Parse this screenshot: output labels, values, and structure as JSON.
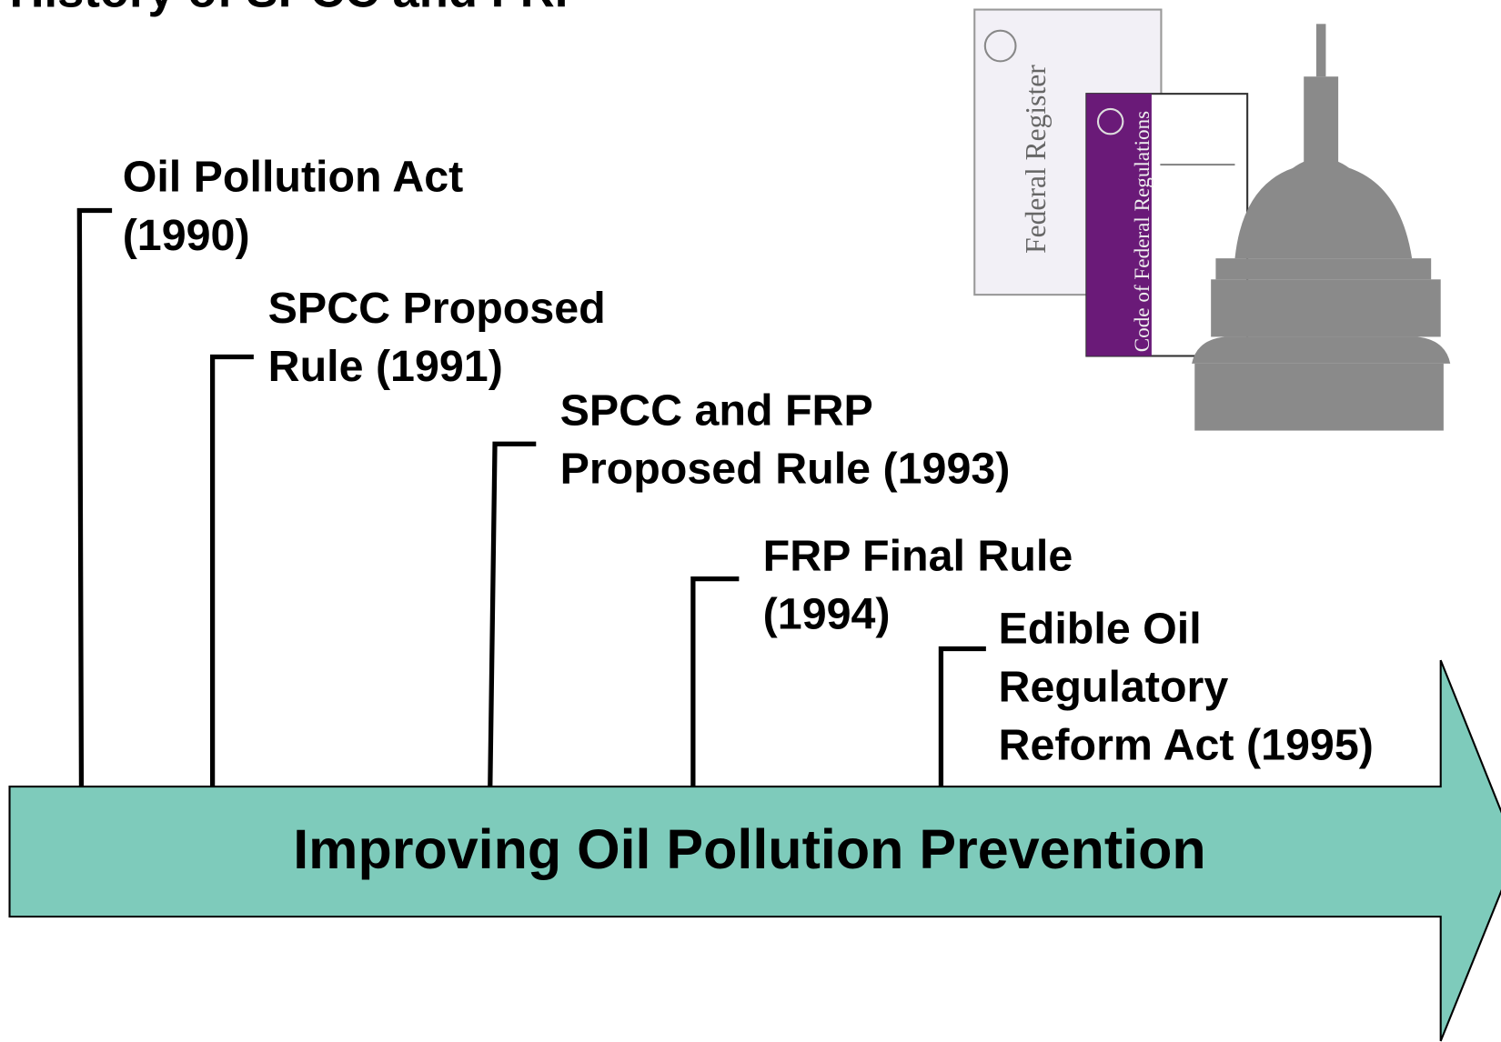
{
  "title": "History of SPCC and FRP",
  "banner": "Improving Oil Pollution Prevention",
  "events": [
    {
      "lines": [
        "Oil Pollution Act",
        "(1990)"
      ]
    },
    {
      "lines": [
        "SPCC Proposed",
        "Rule (1991)"
      ]
    },
    {
      "lines": [
        "SPCC and FRP",
        "Proposed Rule (1993)"
      ]
    },
    {
      "lines": [
        "FRP Final Rule",
        "(1994)"
      ]
    },
    {
      "lines": [
        "Edible Oil",
        "Regulatory",
        "Reform Act (1995)"
      ]
    }
  ],
  "images": {
    "federal_register": "Federal Register",
    "cfr": "Code of Federal Regulations"
  }
}
